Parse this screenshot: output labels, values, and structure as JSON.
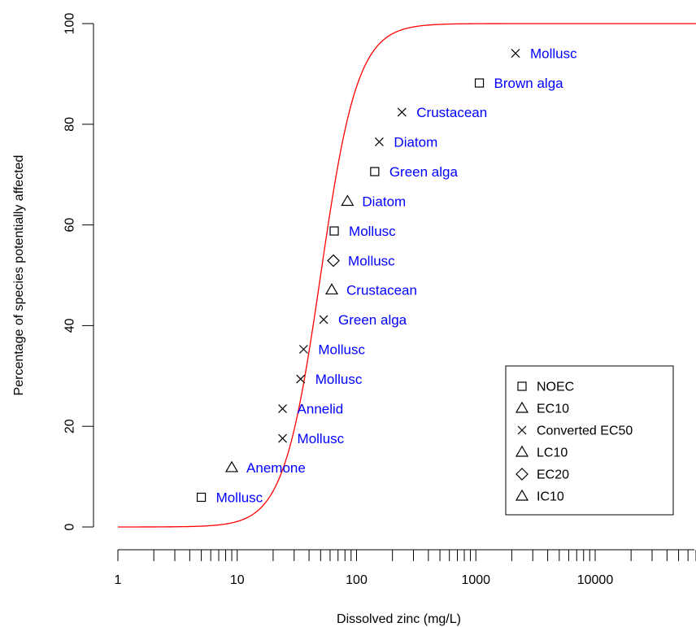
{
  "chart_data": {
    "type": "scatter",
    "title": "",
    "xlabel": "Dissolved zinc (mg/L)",
    "ylabel": "Percentage of species potentially affected",
    "x_scale": "log",
    "xlim": [
      1,
      70000
    ],
    "ylim": [
      0,
      100
    ],
    "x_ticks": [
      1,
      10,
      100,
      1000,
      10000
    ],
    "x_tick_labels": [
      "1",
      "10",
      "100",
      "1000",
      "10000"
    ],
    "y_ticks": [
      0,
      20,
      40,
      60,
      80,
      100
    ],
    "y_tick_labels": [
      "0",
      "20",
      "40",
      "60",
      "80",
      "100"
    ],
    "grid": false,
    "colors": {
      "curve": "#ff0000",
      "labels": "#0000ff",
      "points": "#000000"
    },
    "curve": {
      "type": "log-logistic",
      "center": 50,
      "slope_log10": 2.8
    },
    "legend": {
      "placement": "bottom-right",
      "entries": [
        {
          "label": "NOEC",
          "symbol": "square"
        },
        {
          "label": "EC10",
          "symbol": "triangle"
        },
        {
          "label": "Converted EC50",
          "symbol": "cross"
        },
        {
          "label": "LC10",
          "symbol": "triangle"
        },
        {
          "label": "EC20",
          "symbol": "diamond"
        },
        {
          "label": "IC10",
          "symbol": "triangle"
        }
      ]
    },
    "points": [
      {
        "x": 5,
        "y": 5.9,
        "symbol": "square",
        "label": "Mollusc"
      },
      {
        "x": 9,
        "y": 11.8,
        "symbol": "triangle",
        "label": "Anemone"
      },
      {
        "x": 24,
        "y": 17.6,
        "symbol": "cross",
        "label": "Mollusc"
      },
      {
        "x": 24,
        "y": 23.5,
        "symbol": "cross",
        "label": "Annelid"
      },
      {
        "x": 34,
        "y": 29.4,
        "symbol": "cross",
        "label": "Mollusc"
      },
      {
        "x": 36,
        "y": 35.3,
        "symbol": "cross",
        "label": "Mollusc"
      },
      {
        "x": 53,
        "y": 41.2,
        "symbol": "cross",
        "label": "Green alga"
      },
      {
        "x": 62,
        "y": 47.1,
        "symbol": "triangle",
        "label": "Crustacean"
      },
      {
        "x": 64,
        "y": 52.9,
        "symbol": "diamond",
        "label": "Mollusc"
      },
      {
        "x": 65,
        "y": 58.8,
        "symbol": "square",
        "label": "Mollusc"
      },
      {
        "x": 84,
        "y": 64.7,
        "symbol": "triangle",
        "label": "Diatom"
      },
      {
        "x": 142,
        "y": 70.6,
        "symbol": "square",
        "label": "Green alga"
      },
      {
        "x": 155,
        "y": 76.5,
        "symbol": "cross",
        "label": "Diatom"
      },
      {
        "x": 240,
        "y": 82.4,
        "symbol": "cross",
        "label": "Crustacean"
      },
      {
        "x": 1070,
        "y": 88.2,
        "symbol": "square",
        "label": "Brown alga"
      },
      {
        "x": 2150,
        "y": 94.1,
        "symbol": "cross",
        "label": "Mollusc"
      }
    ]
  }
}
